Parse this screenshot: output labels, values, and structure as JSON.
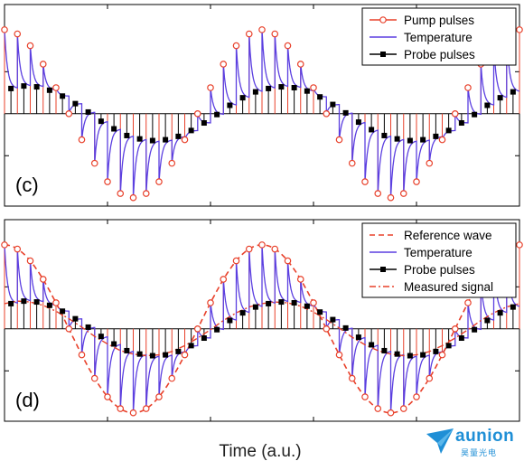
{
  "figure": {
    "xlabel": "Time (a.u.)"
  },
  "chart_data": [
    {
      "type": "line",
      "panel_label": "(c)",
      "xlabel": "Time (a.u.)",
      "legend_position": "top-right",
      "grid": false,
      "xlim": [
        0,
        40
      ],
      "ylim": [
        -1.1,
        1.3
      ],
      "series": [
        {
          "name": "Pump pulses",
          "color": "#e8402a",
          "marker": "open-circle",
          "x": [
            0,
            1,
            2,
            3,
            4,
            5,
            6,
            7,
            8,
            9,
            10,
            11,
            12,
            13,
            14,
            15,
            16,
            17,
            18,
            19,
            20,
            21,
            22,
            23,
            24,
            25,
            26,
            27,
            28,
            29,
            30,
            31,
            32,
            33,
            34,
            35,
            36,
            37,
            38,
            39,
            40
          ],
          "y": [
            1.0,
            0.95,
            0.81,
            0.59,
            0.31,
            0.0,
            -0.31,
            -0.59,
            -0.81,
            -0.95,
            -1.0,
            -0.95,
            -0.81,
            -0.59,
            -0.31,
            0.0,
            0.31,
            0.59,
            0.81,
            0.95,
            1.0,
            0.95,
            0.81,
            0.59,
            0.31,
            0.0,
            -0.31,
            -0.59,
            -0.81,
            -0.95,
            -1.0,
            -0.95,
            -0.81,
            -0.59,
            -0.31,
            0.0,
            0.31,
            0.59,
            0.81,
            0.95,
            1.0
          ]
        },
        {
          "name": "Temperature",
          "color": "#5b3fe0"
        },
        {
          "name": "Probe pulses",
          "color": "#000000",
          "marker": "filled-square",
          "x": [
            0.5,
            1.5,
            2.5,
            3.5,
            4.5,
            5.5,
            6.5,
            7.5,
            8.5,
            9.5,
            10.5,
            11.5,
            12.5,
            13.5,
            14.5,
            15.5,
            16.5,
            17.5,
            18.5,
            19.5,
            20.5,
            21.5,
            22.5,
            23.5,
            24.5,
            25.5,
            26.5,
            27.5,
            28.5,
            29.5,
            30.5,
            31.5,
            32.5,
            33.5,
            34.5,
            35.5,
            36.5,
            37.5,
            38.5,
            39.5
          ],
          "y": [
            0.3,
            0.33,
            0.32,
            0.28,
            0.21,
            0.12,
            0.02,
            -0.09,
            -0.18,
            -0.26,
            -0.3,
            -0.32,
            -0.31,
            -0.27,
            -0.2,
            -0.11,
            -0.01,
            0.1,
            0.19,
            0.26,
            0.3,
            0.32,
            0.31,
            0.27,
            0.2,
            0.11,
            0.01,
            -0.1,
            -0.19,
            -0.26,
            -0.3,
            -0.32,
            -0.31,
            -0.27,
            -0.2,
            -0.11,
            -0.01,
            0.1,
            0.19,
            0.26
          ]
        }
      ]
    },
    {
      "type": "line",
      "panel_label": "(d)",
      "xlabel": "Time (a.u.)",
      "legend_position": "top-right",
      "grid": false,
      "xlim": [
        0,
        40
      ],
      "ylim": [
        -1.1,
        1.3
      ],
      "series": [
        {
          "name": "Reference wave",
          "color": "#e8402a",
          "style": "dashed",
          "x": [
            0,
            1,
            2,
            3,
            4,
            5,
            6,
            7,
            8,
            9,
            10,
            11,
            12,
            13,
            14,
            15,
            16,
            17,
            18,
            19,
            20,
            21,
            22,
            23,
            24,
            25,
            26,
            27,
            28,
            29,
            30,
            31,
            32,
            33,
            34,
            35,
            36,
            37,
            38,
            39,
            40
          ],
          "y": [
            1.0,
            0.95,
            0.81,
            0.59,
            0.31,
            0.0,
            -0.31,
            -0.59,
            -0.81,
            -0.95,
            -1.0,
            -0.95,
            -0.81,
            -0.59,
            -0.31,
            0.0,
            0.31,
            0.59,
            0.81,
            0.95,
            1.0,
            0.95,
            0.81,
            0.59,
            0.31,
            0.0,
            -0.31,
            -0.59,
            -0.81,
            -0.95,
            -1.0,
            -0.95,
            -0.81,
            -0.59,
            -0.31,
            0.0,
            0.31,
            0.59,
            0.81,
            0.95,
            1.0
          ]
        },
        {
          "name": "Temperature",
          "color": "#5b3fe0"
        },
        {
          "name": "Probe pulses",
          "color": "#000000",
          "marker": "filled-square",
          "x": [
            0.5,
            1.5,
            2.5,
            3.5,
            4.5,
            5.5,
            6.5,
            7.5,
            8.5,
            9.5,
            10.5,
            11.5,
            12.5,
            13.5,
            14.5,
            15.5,
            16.5,
            17.5,
            18.5,
            19.5,
            20.5,
            21.5,
            22.5,
            23.5,
            24.5,
            25.5,
            26.5,
            27.5,
            28.5,
            29.5,
            30.5,
            31.5,
            32.5,
            33.5,
            34.5,
            35.5,
            36.5,
            37.5,
            38.5,
            39.5
          ],
          "y": [
            0.3,
            0.33,
            0.32,
            0.28,
            0.21,
            0.12,
            0.02,
            -0.09,
            -0.18,
            -0.26,
            -0.3,
            -0.32,
            -0.31,
            -0.27,
            -0.2,
            -0.11,
            -0.01,
            0.1,
            0.19,
            0.26,
            0.3,
            0.32,
            0.31,
            0.27,
            0.2,
            0.11,
            0.01,
            -0.1,
            -0.19,
            -0.26,
            -0.3,
            -0.32,
            -0.31,
            -0.27,
            -0.2,
            -0.11,
            -0.01,
            0.1,
            0.19,
            0.26
          ]
        },
        {
          "name": "Measured signal",
          "color": "#e8402a",
          "style": "dash-dot",
          "x": [
            0,
            1,
            2,
            3,
            4,
            5,
            6,
            7,
            8,
            9,
            10,
            11,
            12,
            13,
            14,
            15,
            16,
            17,
            18,
            19,
            20,
            21,
            22,
            23,
            24,
            25,
            26,
            27,
            28,
            29,
            30,
            31,
            32,
            33,
            34,
            35,
            36,
            37,
            38,
            39,
            40
          ],
          "y": [
            0.3,
            0.33,
            0.32,
            0.28,
            0.21,
            0.12,
            0.02,
            -0.09,
            -0.18,
            -0.26,
            -0.3,
            -0.32,
            -0.31,
            -0.27,
            -0.2,
            -0.11,
            -0.01,
            0.1,
            0.19,
            0.26,
            0.3,
            0.32,
            0.31,
            0.27,
            0.2,
            0.11,
            0.01,
            -0.1,
            -0.19,
            -0.26,
            -0.3,
            -0.32,
            -0.31,
            -0.27,
            -0.2,
            -0.11,
            -0.01,
            0.1,
            0.19,
            0.26,
            0.3
          ]
        }
      ]
    }
  ],
  "logo": {
    "word": "aunion",
    "sub": "昊量光电"
  }
}
